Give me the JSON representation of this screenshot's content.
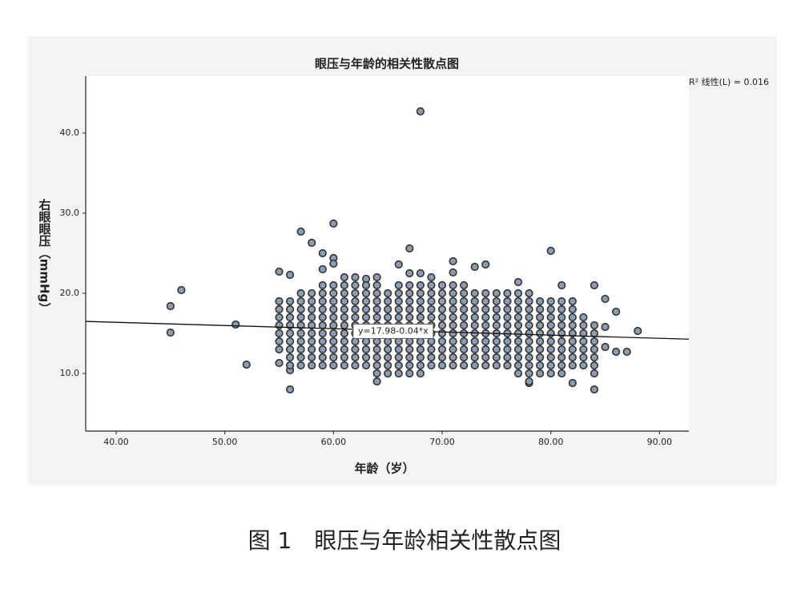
{
  "chart_data": {
    "type": "scatter",
    "title": "眼压与年龄的相关性散点图",
    "x_label": "年龄（岁）",
    "y_label": "右眼眼压（mmHg）",
    "fit_label": "y=17.98-0.04*x",
    "fit": {
      "intercept": 17.98,
      "slope": -0.04
    },
    "r2_label": "R² 线性(L) = 0.016",
    "caption": "图 1　眼压与年龄相关性散点图",
    "color": "#8a9db2",
    "xlim": [
      37.2,
      92.7
    ],
    "ylim": [
      2.8,
      47.1
    ],
    "xticks": [
      {
        "value": 40,
        "label": "40.00"
      },
      {
        "value": 50,
        "label": "50.00"
      },
      {
        "value": 60,
        "label": "60.00"
      },
      {
        "value": 70,
        "label": "70.00"
      },
      {
        "value": 80,
        "label": "80.00"
      },
      {
        "value": 90,
        "label": "90.00"
      }
    ],
    "yticks": [
      {
        "value": 10,
        "label": "10.0"
      },
      {
        "value": 20,
        "label": "20.0"
      },
      {
        "value": 30,
        "label": "30.0"
      },
      {
        "value": 40,
        "label": "40.0"
      }
    ],
    "x": [
      45,
      45,
      46,
      51,
      52,
      55,
      55,
      56,
      56,
      56,
      57,
      58,
      59,
      59,
      60,
      60,
      60,
      61,
      62,
      63,
      64,
      66,
      67,
      67,
      68,
      68,
      69,
      71,
      71,
      73,
      74,
      77,
      78,
      80,
      81,
      82,
      84,
      84,
      85,
      85,
      85,
      86,
      86,
      87,
      88,
      55,
      55,
      55,
      55,
      55,
      55,
      55,
      56,
      56,
      56,
      56,
      56,
      56,
      56,
      56,
      56,
      57,
      57,
      57,
      57,
      57,
      57,
      57,
      57,
      57,
      57,
      58,
      58,
      58,
      58,
      58,
      58,
      58,
      58,
      58,
      58,
      59,
      59,
      59,
      59,
      59,
      59,
      59,
      59,
      59,
      59,
      59,
      60,
      60,
      60,
      60,
      60,
      60,
      60,
      60,
      60,
      60,
      60,
      61,
      61,
      61,
      61,
      61,
      61,
      61,
      61,
      61,
      61,
      61,
      62,
      62,
      62,
      62,
      62,
      62,
      62,
      62,
      62,
      62,
      62,
      63,
      63,
      63,
      63,
      63,
      63,
      63,
      63,
      63,
      63,
      63,
      64,
      64,
      64,
      64,
      64,
      64,
      64,
      64,
      64,
      64,
      64,
      64,
      64,
      65,
      65,
      65,
      65,
      65,
      65,
      65,
      65,
      65,
      65,
      65,
      66,
      66,
      66,
      66,
      66,
      66,
      66,
      66,
      66,
      66,
      66,
      66,
      67,
      67,
      67,
      67,
      67,
      67,
      67,
      67,
      67,
      67,
      67,
      67,
      68,
      68,
      68,
      68,
      68,
      68,
      68,
      68,
      68,
      68,
      68,
      68,
      69,
      69,
      69,
      69,
      69,
      69,
      69,
      69,
      69,
      69,
      69,
      70,
      70,
      70,
      70,
      70,
      70,
      70,
      70,
      70,
      70,
      70,
      71,
      71,
      71,
      71,
      71,
      71,
      71,
      71,
      71,
      71,
      71,
      72,
      72,
      72,
      72,
      72,
      72,
      72,
      72,
      72,
      72,
      72,
      73,
      73,
      73,
      73,
      73,
      73,
      73,
      73,
      73,
      73,
      74,
      74,
      74,
      74,
      74,
      74,
      74,
      74,
      74,
      74,
      75,
      75,
      75,
      75,
      75,
      75,
      75,
      75,
      75,
      75,
      76,
      76,
      76,
      76,
      76,
      76,
      76,
      76,
      76,
      76,
      77,
      77,
      77,
      77,
      77,
      77,
      77,
      77,
      77,
      77,
      77,
      78,
      78,
      78,
      78,
      78,
      78,
      78,
      78,
      78,
      78,
      78,
      78,
      79,
      79,
      79,
      79,
      79,
      79,
      79,
      79,
      79,
      79,
      80,
      80,
      80,
      80,
      80,
      80,
      80,
      80,
      80,
      80,
      81,
      81,
      81,
      81,
      81,
      81,
      81,
      81,
      81,
      81,
      82,
      82,
      82,
      82,
      82,
      82,
      82,
      82,
      82,
      83,
      83,
      83,
      83,
      83,
      83,
      83,
      84,
      84,
      84,
      84,
      84,
      84,
      84
    ],
    "y": [
      18.4,
      15.1,
      20.4,
      16.1,
      11.1,
      22.7,
      11.3,
      22.3,
      8,
      10.4,
      27.7,
      26.3,
      25,
      23,
      28.7,
      24.4,
      23.7,
      22,
      22,
      21.8,
      22,
      23.6,
      25.6,
      22.5,
      42.7,
      22.5,
      22,
      24,
      22.6,
      23.3,
      23.6,
      21.4,
      8.8,
      25.3,
      21,
      8.8,
      21,
      8,
      19.3,
      15.8,
      13.3,
      17.7,
      12.7,
      12.7,
      15.3,
      13,
      14,
      15,
      16,
      17,
      18,
      19,
      11,
      12,
      13,
      14,
      15,
      16,
      17,
      18,
      19,
      11,
      12,
      13,
      14,
      15,
      16,
      17,
      18,
      19,
      20,
      11,
      12,
      13,
      14,
      15,
      16,
      17,
      18,
      19,
      20,
      11,
      12,
      13,
      14,
      15,
      16,
      17,
      18,
      19,
      20,
      21,
      11,
      12,
      13,
      14,
      15,
      16,
      17,
      18,
      19,
      20,
      21,
      11,
      12,
      13,
      14,
      15,
      16,
      17,
      18,
      19,
      20,
      21,
      11,
      12,
      13,
      14,
      15,
      16,
      17,
      18,
      19,
      20,
      21,
      11,
      12,
      13,
      14,
      15,
      16,
      17,
      18,
      19,
      20,
      21,
      9,
      10,
      11,
      12,
      13,
      14,
      15,
      16,
      17,
      18,
      19,
      20,
      21,
      10,
      11,
      12,
      13,
      14,
      15,
      16,
      17,
      18,
      19,
      20,
      10,
      11,
      12,
      13,
      14,
      15,
      16,
      17,
      18,
      19,
      20,
      21,
      10,
      11,
      12,
      13,
      14,
      15,
      16,
      17,
      18,
      19,
      20,
      21,
      10,
      11,
      12,
      13,
      14,
      15,
      16,
      17,
      18,
      19,
      20,
      21,
      11,
      12,
      13,
      14,
      15,
      16,
      17,
      18,
      19,
      20,
      21,
      11,
      12,
      13,
      14,
      15,
      16,
      17,
      18,
      19,
      20,
      21,
      11,
      12,
      13,
      14,
      15,
      16,
      17,
      18,
      19,
      20,
      21,
      11,
      12,
      13,
      14,
      15,
      16,
      17,
      18,
      19,
      20,
      21,
      11,
      12,
      13,
      14,
      15,
      16,
      17,
      18,
      19,
      20,
      11,
      12,
      13,
      14,
      15,
      16,
      17,
      18,
      19,
      20,
      11,
      12,
      13,
      14,
      15,
      16,
      17,
      18,
      19,
      20,
      11,
      12,
      13,
      14,
      15,
      16,
      17,
      18,
      19,
      20,
      10,
      11,
      12,
      13,
      14,
      15,
      16,
      17,
      18,
      19,
      20,
      9,
      10,
      11,
      12,
      13,
      14,
      15,
      16,
      17,
      18,
      19,
      20,
      10,
      11,
      12,
      13,
      14,
      15,
      16,
      17,
      18,
      19,
      10,
      11,
      12,
      13,
      14,
      15,
      16,
      17,
      18,
      19,
      10,
      11,
      12,
      13,
      14,
      15,
      16,
      17,
      18,
      19,
      11,
      12,
      13,
      14,
      15,
      16,
      17,
      18,
      19,
      11,
      12,
      13,
      14,
      15,
      16,
      17,
      10,
      11,
      12,
      13,
      14,
      15,
      16
    ]
  }
}
